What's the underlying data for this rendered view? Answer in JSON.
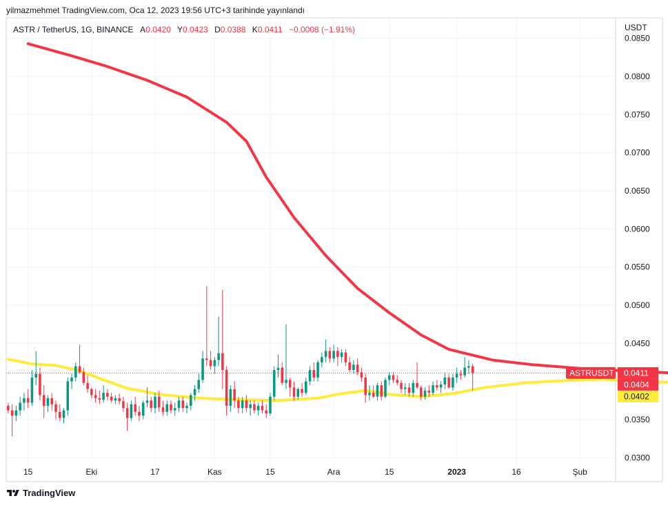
{
  "header": {
    "publisher": "yilmazmehmet TradingView.com, Oca 12, 2023 19:56 UTC+3 tarihinde yayınlandı"
  },
  "legend": {
    "symbol": "ASTR / TetherUS, 1G, BINANCE",
    "open_label": "A",
    "open": "0.0420",
    "high_label": "Y",
    "high": "0.0423",
    "low_label": "D",
    "low": "0.0388",
    "close_label": "K",
    "close": "0.0411",
    "change": "−0.0008 (−1.91%)"
  },
  "footer": {
    "brand": "TradingView"
  },
  "colors": {
    "up": "#089981",
    "down": "#f23645",
    "ma_long": "#f23645",
    "ma_short": "#ffeb3b",
    "grid": "#f0f3fa",
    "text": "#131722"
  },
  "chart_data": {
    "type": "candlestick",
    "title": "ASTR / TetherUS, 1G, BINANCE",
    "currency_label": "USDT",
    "ylim": [
      0.0293,
      0.0875
    ],
    "y_ticks": [
      "0.0850",
      "0.0800",
      "0.0750",
      "0.0700",
      "0.0650",
      "0.0600",
      "0.0550",
      "0.0500",
      "0.0450",
      "0.0400",
      "0.0350",
      "0.0300"
    ],
    "x_start": "2022-09-10",
    "x_ticks": [
      {
        "date": "2022-09-15",
        "label": "15",
        "bold": false
      },
      {
        "date": "2022-10-01",
        "label": "Eki",
        "bold": false
      },
      {
        "date": "2022-10-17",
        "label": "17",
        "bold": false
      },
      {
        "date": "2022-11-01",
        "label": "Kas",
        "bold": false
      },
      {
        "date": "2022-11-15",
        "label": "15",
        "bold": false
      },
      {
        "date": "2022-12-01",
        "label": "Ara",
        "bold": false
      },
      {
        "date": "2022-12-15",
        "label": "15",
        "bold": false
      },
      {
        "date": "2023-01-01",
        "label": "2023",
        "bold": true
      },
      {
        "date": "2023-01-16",
        "label": "16",
        "bold": false
      },
      {
        "date": "2023-02-01",
        "label": "Şub",
        "bold": false
      }
    ],
    "ohlc": [
      [
        0.0368,
        0.0372,
        0.0358,
        0.0362
      ],
      [
        0.0362,
        0.037,
        0.0328,
        0.0355
      ],
      [
        0.0355,
        0.0368,
        0.0348,
        0.0362
      ],
      [
        0.0362,
        0.038,
        0.0355,
        0.0372
      ],
      [
        0.0372,
        0.0385,
        0.0362,
        0.0378
      ],
      [
        0.0378,
        0.039,
        0.0365,
        0.0372
      ],
      [
        0.0372,
        0.0415,
        0.0368,
        0.0405
      ],
      [
        0.0405,
        0.044,
        0.0395,
        0.041
      ],
      [
        0.041,
        0.0418,
        0.0375,
        0.0382
      ],
      [
        0.0382,
        0.0395,
        0.0352,
        0.0368
      ],
      [
        0.0368,
        0.0382,
        0.036,
        0.0378
      ],
      [
        0.0378,
        0.0385,
        0.0362,
        0.037
      ],
      [
        0.037,
        0.0375,
        0.035,
        0.036
      ],
      [
        0.036,
        0.037,
        0.0348,
        0.0352
      ],
      [
        0.0352,
        0.0365,
        0.0345,
        0.0362
      ],
      [
        0.0362,
        0.0405,
        0.0355,
        0.04
      ],
      [
        0.04,
        0.041,
        0.039,
        0.0405
      ],
      [
        0.0405,
        0.0425,
        0.04,
        0.042
      ],
      [
        0.042,
        0.0448,
        0.041,
        0.0412
      ],
      [
        0.0412,
        0.0418,
        0.0395,
        0.0398
      ],
      [
        0.0398,
        0.0408,
        0.0385,
        0.039
      ],
      [
        0.039,
        0.0392,
        0.0378,
        0.0382
      ],
      [
        0.0382,
        0.039,
        0.0372,
        0.0378
      ],
      [
        0.0378,
        0.0388,
        0.037,
        0.0376
      ],
      [
        0.0376,
        0.0395,
        0.0372,
        0.0385
      ],
      [
        0.0385,
        0.039,
        0.0375,
        0.038
      ],
      [
        0.038,
        0.0385,
        0.0372,
        0.0375
      ],
      [
        0.0375,
        0.0382,
        0.037,
        0.0378
      ],
      [
        0.0378,
        0.0384,
        0.037,
        0.0374
      ],
      [
        0.0374,
        0.038,
        0.036,
        0.0365
      ],
      [
        0.0365,
        0.0372,
        0.0335,
        0.0352
      ],
      [
        0.0352,
        0.0375,
        0.0348,
        0.037
      ],
      [
        0.037,
        0.038,
        0.0355,
        0.036
      ],
      [
        0.036,
        0.0368,
        0.0348,
        0.0355
      ],
      [
        0.0355,
        0.0375,
        0.035,
        0.0372
      ],
      [
        0.0372,
        0.0392,
        0.0366,
        0.0375
      ],
      [
        0.0375,
        0.038,
        0.036,
        0.0365
      ],
      [
        0.0365,
        0.0385,
        0.0358,
        0.038
      ],
      [
        0.038,
        0.0388,
        0.036,
        0.0366
      ],
      [
        0.0366,
        0.0375,
        0.0355,
        0.036
      ],
      [
        0.036,
        0.0375,
        0.0355,
        0.037
      ],
      [
        0.037,
        0.0375,
        0.0358,
        0.0362
      ],
      [
        0.0362,
        0.0372,
        0.0355,
        0.0365
      ],
      [
        0.0365,
        0.038,
        0.036,
        0.0375
      ],
      [
        0.0375,
        0.038,
        0.036,
        0.0365
      ],
      [
        0.0365,
        0.0372,
        0.0358,
        0.0368
      ],
      [
        0.0368,
        0.0385,
        0.0362,
        0.0382
      ],
      [
        0.0382,
        0.0395,
        0.0375,
        0.039
      ],
      [
        0.039,
        0.041,
        0.0385,
        0.0402
      ],
      [
        0.0402,
        0.044,
        0.0398,
        0.043
      ],
      [
        0.043,
        0.0525,
        0.042,
        0.0428
      ],
      [
        0.0428,
        0.044,
        0.0415,
        0.042
      ],
      [
        0.042,
        0.0432,
        0.041,
        0.0428
      ],
      [
        0.0428,
        0.0485,
        0.042,
        0.0437
      ],
      [
        0.0437,
        0.052,
        0.039,
        0.0415
      ],
      [
        0.0415,
        0.042,
        0.0355,
        0.0368
      ],
      [
        0.0368,
        0.0395,
        0.036,
        0.039
      ],
      [
        0.039,
        0.04,
        0.0365,
        0.0375
      ],
      [
        0.0375,
        0.038,
        0.0358,
        0.0365
      ],
      [
        0.0365,
        0.038,
        0.0358,
        0.0375
      ],
      [
        0.0375,
        0.0382,
        0.036,
        0.0365
      ],
      [
        0.0365,
        0.0375,
        0.0355,
        0.037
      ],
      [
        0.037,
        0.0375,
        0.0358,
        0.0362
      ],
      [
        0.0362,
        0.0372,
        0.0355,
        0.0368
      ],
      [
        0.0368,
        0.0375,
        0.0358,
        0.0362
      ],
      [
        0.0362,
        0.037,
        0.0352,
        0.0358
      ],
      [
        0.0358,
        0.0385,
        0.0355,
        0.038
      ],
      [
        0.038,
        0.042,
        0.0375,
        0.0415
      ],
      [
        0.0415,
        0.0435,
        0.0405,
        0.0418
      ],
      [
        0.0418,
        0.0425,
        0.0395,
        0.0398
      ],
      [
        0.0398,
        0.0475,
        0.039,
        0.0402
      ],
      [
        0.0402,
        0.0405,
        0.038,
        0.0392
      ],
      [
        0.0392,
        0.04,
        0.0375,
        0.038
      ],
      [
        0.038,
        0.0392,
        0.0376,
        0.039
      ],
      [
        0.039,
        0.0398,
        0.038,
        0.0385
      ],
      [
        0.0385,
        0.0405,
        0.0382,
        0.04
      ],
      [
        0.04,
        0.042,
        0.0395,
        0.0415
      ],
      [
        0.0415,
        0.0425,
        0.04,
        0.0405
      ],
      [
        0.0405,
        0.0428,
        0.04,
        0.0425
      ],
      [
        0.0425,
        0.0438,
        0.0418,
        0.0432
      ],
      [
        0.0432,
        0.0455,
        0.0425,
        0.044
      ],
      [
        0.044,
        0.0445,
        0.0425,
        0.043
      ],
      [
        0.043,
        0.0448,
        0.0425,
        0.044
      ],
      [
        0.044,
        0.0445,
        0.042,
        0.0432
      ],
      [
        0.0432,
        0.0442,
        0.0425,
        0.0438
      ],
      [
        0.0438,
        0.0442,
        0.042,
        0.0425
      ],
      [
        0.0425,
        0.0432,
        0.0412,
        0.0415
      ],
      [
        0.0415,
        0.0428,
        0.041,
        0.0422
      ],
      [
        0.0422,
        0.043,
        0.0408,
        0.0412
      ],
      [
        0.0412,
        0.0418,
        0.04,
        0.0405
      ],
      [
        0.0405,
        0.041,
        0.0372,
        0.0382
      ],
      [
        0.0382,
        0.0395,
        0.0375,
        0.0385
      ],
      [
        0.0385,
        0.0395,
        0.0378,
        0.038
      ],
      [
        0.038,
        0.0398,
        0.0375,
        0.0395
      ],
      [
        0.0395,
        0.04,
        0.0375,
        0.038
      ],
      [
        0.038,
        0.0405,
        0.0378,
        0.0402
      ],
      [
        0.0402,
        0.0412,
        0.0395,
        0.0408
      ],
      [
        0.0408,
        0.0412,
        0.0398,
        0.0402
      ],
      [
        0.0402,
        0.0408,
        0.0395,
        0.0398
      ],
      [
        0.0398,
        0.0402,
        0.0385,
        0.039
      ],
      [
        0.039,
        0.0398,
        0.0382,
        0.0392
      ],
      [
        0.0392,
        0.0398,
        0.038,
        0.0385
      ],
      [
        0.0385,
        0.0402,
        0.038,
        0.0398
      ],
      [
        0.0398,
        0.0425,
        0.039,
        0.0392
      ],
      [
        0.0392,
        0.0395,
        0.0375,
        0.038
      ],
      [
        0.038,
        0.0392,
        0.0376,
        0.0388
      ],
      [
        0.0388,
        0.0395,
        0.038,
        0.0385
      ],
      [
        0.0385,
        0.04,
        0.0382,
        0.0395
      ],
      [
        0.0395,
        0.0402,
        0.0388,
        0.0392
      ],
      [
        0.0392,
        0.04,
        0.0385,
        0.0396
      ],
      [
        0.0396,
        0.0412,
        0.039,
        0.0405
      ],
      [
        0.0405,
        0.041,
        0.039,
        0.0392
      ],
      [
        0.0392,
        0.041,
        0.0388,
        0.0405
      ],
      [
        0.0405,
        0.0418,
        0.0398,
        0.041
      ],
      [
        0.041,
        0.0415,
        0.0402,
        0.0408
      ],
      [
        0.0408,
        0.0432,
        0.0405,
        0.0418
      ],
      [
        0.0418,
        0.0428,
        0.041,
        0.042
      ],
      [
        0.042,
        0.0423,
        0.0388,
        0.0411
      ]
    ],
    "series": [
      {
        "name": "",
        "color": "#f23645",
        "points": [
          [
            5,
            0.0843
          ],
          [
            16,
            0.0827
          ],
          [
            25,
            0.0813
          ],
          [
            35,
            0.0795
          ],
          [
            45,
            0.0773
          ],
          [
            55,
            0.074
          ],
          [
            60,
            0.0715
          ],
          [
            65,
            0.0668
          ],
          [
            72,
            0.0615
          ],
          [
            80,
            0.0565
          ],
          [
            88,
            0.0522
          ],
          [
            96,
            0.049
          ],
          [
            104,
            0.0461
          ],
          [
            111,
            0.0442
          ],
          [
            122,
            0.0428
          ],
          [
            132,
            0.0422
          ],
          [
            144,
            0.0417
          ],
          [
            158,
            0.0413
          ],
          [
            168,
            0.0411
          ],
          [
            174,
            0.0409
          ]
        ]
      },
      {
        "name": "",
        "color": "#ffeb3b",
        "points": [
          [
            0,
            0.0429
          ],
          [
            6,
            0.0423
          ],
          [
            12,
            0.0421
          ],
          [
            18,
            0.0414
          ],
          [
            24,
            0.0402
          ],
          [
            30,
            0.0391
          ],
          [
            38,
            0.0383
          ],
          [
            48,
            0.0378
          ],
          [
            58,
            0.0376
          ],
          [
            68,
            0.0375
          ],
          [
            78,
            0.0378
          ],
          [
            84,
            0.0384
          ],
          [
            90,
            0.0388
          ],
          [
            96,
            0.0383
          ],
          [
            104,
            0.038
          ],
          [
            112,
            0.0384
          ],
          [
            120,
            0.0392
          ],
          [
            130,
            0.0398
          ],
          [
            140,
            0.0401
          ],
          [
            150,
            0.0403
          ],
          [
            158,
            0.0399
          ],
          [
            166,
            0.0399
          ],
          [
            174,
            0.0402
          ]
        ]
      }
    ],
    "price_labels": [
      {
        "text": "ASTRUSDT",
        "value": 0.0411,
        "color": "#f23645"
      },
      {
        "text": "0.0411",
        "value": 0.0411,
        "color": "#f23645"
      },
      {
        "text": "0.0404",
        "value": 0.0404,
        "color": "#f23645"
      },
      {
        "text": "0.0402",
        "value": 0.0402,
        "color": "#ffeb3b"
      }
    ],
    "last_price": 0.0411
  }
}
